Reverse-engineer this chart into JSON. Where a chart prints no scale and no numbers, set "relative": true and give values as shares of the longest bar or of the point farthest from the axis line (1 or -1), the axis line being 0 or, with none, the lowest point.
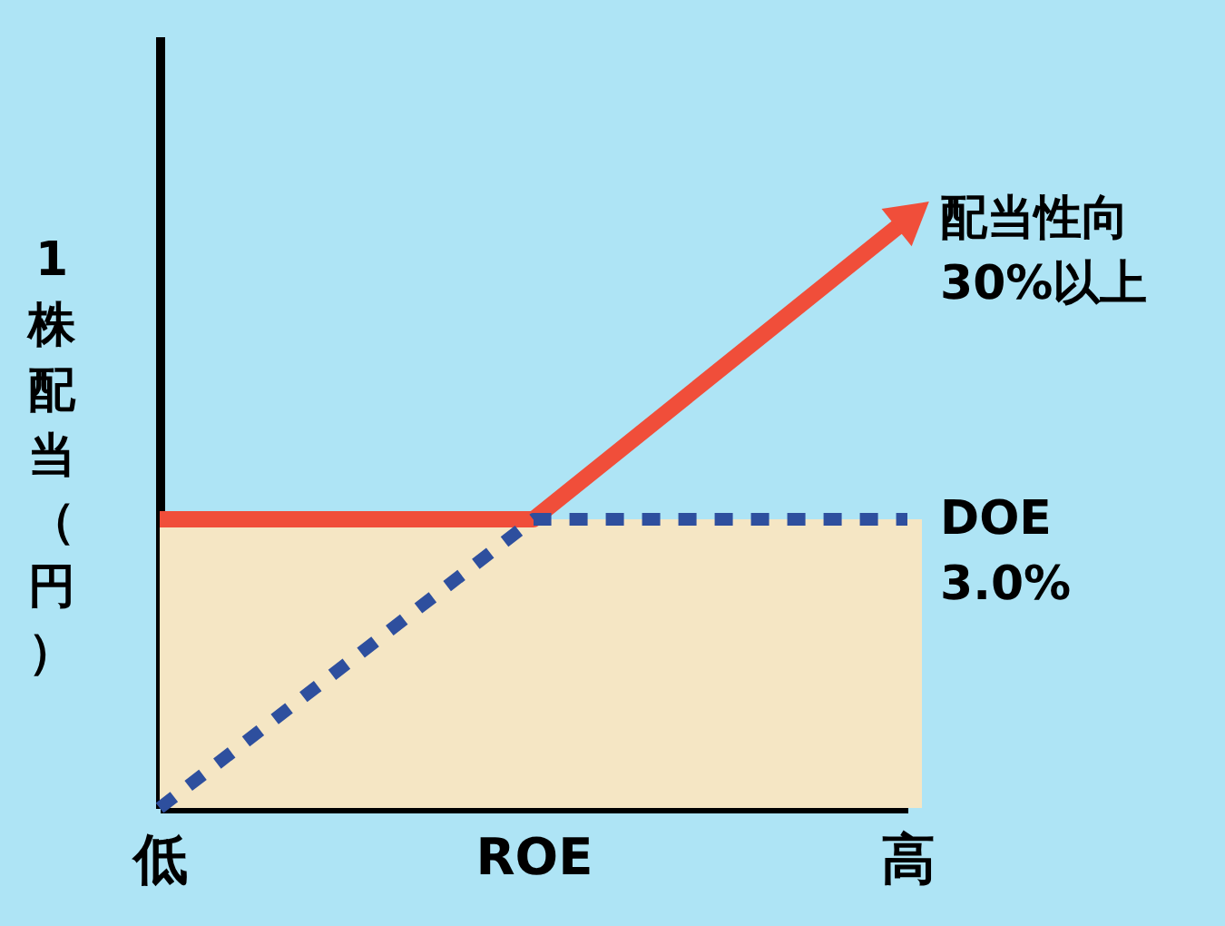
{
  "chart_data": {
    "type": "line",
    "relative": true,
    "xlabel": "ROE",
    "ylabel": "1株配当（円）",
    "tick_labels": "x",
    "categories": [
      "低",
      null,
      "高"
    ],
    "series": [
      {
        "color": "#f04e3a",
        "line_style": "solid",
        "values": [
          0.49,
          0.49,
          1
        ]
      },
      {
        "color": "#2e4f9e",
        "line_style": "dotted",
        "values": [
          0,
          0.49,
          0.49
        ]
      }
    ],
    "bands": [
      {
        "axis": "y",
        "from": 0,
        "to": 0.49,
        "color": "#f5e6c4"
      }
    ],
    "annotations": [
      {
        "text": "配当性向\n30%以上",
        "x": "高",
        "y": 1
      },
      {
        "text": "DOE\n3.0%",
        "x": "高",
        "y": 0.49
      }
    ]
  }
}
